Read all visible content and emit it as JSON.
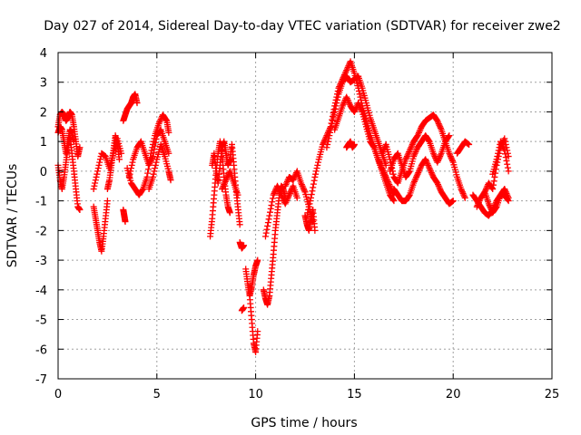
{
  "chart_data": {
    "type": "scatter",
    "title": "Day 027 of 2014, Sidereal Day-to-day VTEC variation (SDTVAR) for receiver zwe2",
    "xlabel": "GPS time / hours",
    "ylabel": "SDTVAR / TECUs",
    "xlim": [
      0,
      25
    ],
    "ylim": [
      -7,
      4
    ],
    "xticks": [
      "0",
      "5",
      "10",
      "15",
      "20",
      "25"
    ],
    "yticks": [
      "-7",
      "-6",
      "-5",
      "-4",
      "-3",
      "-2",
      "-1",
      "0",
      "1",
      "2",
      "3",
      "4"
    ],
    "xtick_values": [
      0,
      5,
      10,
      15,
      20,
      25
    ],
    "ytick_values": [
      -7,
      -6,
      -5,
      -4,
      -3,
      -2,
      -1,
      0,
      1,
      2,
      3,
      4
    ],
    "grid": true,
    "marker": "plus",
    "color": "#ff0000",
    "series": [
      {
        "name": "s1",
        "x": [
          0.0,
          0.1,
          0.2,
          0.3,
          0.4,
          0.5,
          0.6,
          0.7,
          0.8,
          0.9,
          1.0,
          1.1
        ],
        "y": [
          1.5,
          1.9,
          2.0,
          1.9,
          1.7,
          1.8,
          2.0,
          1.9,
          1.5,
          1.0,
          0.5,
          0.8
        ]
      },
      {
        "name": "s2",
        "x": [
          0.0,
          0.1,
          0.2,
          0.3,
          0.4,
          0.5,
          0.6,
          0.7,
          0.8,
          0.9,
          1.0,
          1.1
        ],
        "y": [
          0.2,
          -0.3,
          -0.6,
          -0.2,
          0.3,
          0.8,
          1.2,
          0.6,
          0.0,
          -0.6,
          -1.2,
          -1.3
        ]
      },
      {
        "name": "s3",
        "x": [
          0.0,
          0.1,
          0.2,
          0.3,
          0.4,
          0.5,
          0.6,
          0.7,
          0.8
        ],
        "y": [
          1.3,
          1.5,
          1.4,
          1.0,
          0.6,
          1.0,
          1.4,
          1.3,
          1.0
        ]
      },
      {
        "name": "s4",
        "x": [
          1.8,
          1.9,
          2.0,
          2.1,
          2.2,
          2.3,
          2.4,
          2.5
        ],
        "y": [
          -1.2,
          -1.6,
          -2.0,
          -2.4,
          -2.7,
          -2.2,
          -1.6,
          -1.0
        ]
      },
      {
        "name": "s5",
        "x": [
          1.8,
          2.0,
          2.2,
          2.4,
          2.6,
          2.8,
          3.0,
          3.2
        ],
        "y": [
          -0.6,
          0.0,
          0.6,
          0.5,
          0.1,
          0.6,
          1.1,
          0.6
        ]
      },
      {
        "name": "s6",
        "x": [
          2.5,
          2.6,
          2.7,
          2.8,
          2.9,
          3.0,
          3.1
        ],
        "y": [
          -0.6,
          -0.3,
          0.2,
          0.7,
          1.2,
          0.9,
          0.4
        ]
      },
      {
        "name": "s7",
        "x": [
          3.3,
          3.4,
          3.5,
          3.6,
          3.7,
          3.8,
          3.9,
          4.0
        ],
        "y": [
          1.7,
          1.9,
          2.1,
          2.2,
          2.3,
          2.5,
          2.6,
          2.3
        ]
      },
      {
        "name": "s8",
        "x": [
          3.3,
          3.35,
          3.4
        ],
        "y": [
          -1.3,
          -1.5,
          -1.7
        ]
      },
      {
        "name": "s9",
        "x": [
          3.5,
          3.7,
          3.9,
          4.1,
          4.3,
          4.5,
          4.7,
          4.9,
          5.1,
          5.3,
          5.5,
          5.6
        ],
        "y": [
          0.1,
          -0.4,
          -0.6,
          -0.8,
          -0.6,
          -0.2,
          0.6,
          1.2,
          1.6,
          1.9,
          1.7,
          1.3
        ]
      },
      {
        "name": "s10",
        "x": [
          3.6,
          3.8,
          4.0,
          4.2,
          4.4,
          4.6,
          4.8,
          5.0,
          5.2,
          5.4,
          5.6
        ],
        "y": [
          -0.2,
          0.4,
          0.8,
          1.0,
          0.6,
          0.2,
          0.5,
          1.2,
          1.4,
          1.0,
          0.6
        ]
      },
      {
        "name": "s11",
        "x": [
          4.6,
          4.8,
          5.0,
          5.2,
          5.4,
          5.6,
          5.7
        ],
        "y": [
          -0.6,
          -0.2,
          0.4,
          0.9,
          0.5,
          0.0,
          -0.3
        ]
      },
      {
        "name": "s12",
        "x": [
          7.7,
          7.8,
          7.9,
          8.0,
          8.1,
          8.2,
          8.3,
          8.4,
          8.5,
          8.6,
          8.7
        ],
        "y": [
          -2.2,
          -1.6,
          -0.8,
          0.0,
          0.6,
          1.0,
          0.6,
          -0.2,
          -0.8,
          -1.2,
          -1.4
        ]
      },
      {
        "name": "s13",
        "x": [
          7.8,
          7.9,
          8.0,
          8.1,
          8.2,
          8.3,
          8.4,
          8.5,
          8.6,
          8.7,
          8.8,
          8.9,
          9.0,
          9.1,
          9.2
        ],
        "y": [
          0.2,
          0.6,
          0.0,
          -0.4,
          0.2,
          0.8,
          1.0,
          0.6,
          0.2,
          0.4,
          0.9,
          0.2,
          -0.6,
          -1.2,
          -1.8
        ]
      },
      {
        "name": "s14",
        "x": [
          8.3,
          8.5,
          8.7,
          8.9,
          9.1
        ],
        "y": [
          -0.6,
          -0.3,
          0.0,
          -0.4,
          -0.8
        ]
      },
      {
        "name": "s15",
        "x": [
          9.2,
          9.3,
          9.4
        ],
        "y": [
          -2.4,
          -2.6,
          -2.5
        ]
      },
      {
        "name": "s16",
        "x": [
          9.3,
          9.4
        ],
        "y": [
          -4.7,
          -4.6
        ]
      },
      {
        "name": "s17",
        "x": [
          9.5,
          9.6,
          9.7,
          9.8,
          9.9,
          10.0,
          10.1
        ],
        "y": [
          -3.3,
          -3.8,
          -4.2,
          -3.9,
          -3.5,
          -3.2,
          -3.0
        ]
      },
      {
        "name": "s18",
        "x": [
          9.7,
          9.8,
          9.9,
          10.0,
          10.1
        ],
        "y": [
          -4.2,
          -5.0,
          -5.8,
          -6.1,
          -5.4
        ]
      },
      {
        "name": "s19",
        "x": [
          10.4,
          10.5,
          10.6,
          10.7,
          10.8,
          10.9,
          11.0,
          11.1,
          11.2,
          11.3,
          11.4,
          11.5
        ],
        "y": [
          -4.0,
          -4.3,
          -4.5,
          -4.2,
          -3.5,
          -2.8,
          -2.0,
          -1.4,
          -0.8,
          -0.5,
          -0.6,
          -0.9
        ]
      },
      {
        "name": "s20",
        "x": [
          10.5,
          10.7,
          10.9,
          11.1,
          11.3,
          11.5,
          11.7,
          11.9,
          12.1
        ],
        "y": [
          -2.2,
          -1.5,
          -0.8,
          -0.5,
          -0.8,
          -1.1,
          -0.8,
          -0.5,
          -0.9
        ]
      },
      {
        "name": "s21",
        "x": [
          11.5,
          11.7,
          11.9,
          12.1,
          12.3,
          12.5,
          12.7,
          12.9
        ],
        "y": [
          -0.5,
          -0.2,
          -0.3,
          0.0,
          -0.4,
          -0.7,
          -1.2,
          -1.7
        ]
      },
      {
        "name": "s22",
        "x": [
          12.5,
          12.6,
          12.7,
          12.8,
          12.9,
          13.0
        ],
        "y": [
          -1.5,
          -1.8,
          -2.0,
          -1.6,
          -1.3,
          -2.0
        ]
      },
      {
        "name": "s23",
        "x": [
          12.6,
          12.8,
          13.0,
          13.2,
          13.4,
          13.6,
          13.8,
          14.0,
          14.2,
          14.4,
          14.6,
          14.8,
          15.0,
          15.2,
          15.4,
          15.6,
          15.8,
          16.0,
          16.2,
          16.4,
          16.6,
          16.8,
          17.0
        ],
        "y": [
          -1.5,
          -0.9,
          -0.2,
          0.4,
          0.9,
          1.2,
          1.5,
          2.2,
          2.8,
          3.1,
          3.4,
          3.7,
          3.3,
          2.8,
          2.2,
          1.7,
          1.2,
          0.8,
          0.4,
          0.0,
          -0.4,
          -0.8,
          -1.0
        ]
      },
      {
        "name": "s24",
        "x": [
          13.6,
          13.8,
          14.0,
          14.2,
          14.4,
          14.6,
          14.8,
          15.0,
          15.2,
          15.4,
          15.6,
          15.8,
          16.0,
          16.2,
          16.4,
          16.6
        ],
        "y": [
          0.8,
          1.4,
          2.0,
          2.6,
          3.0,
          3.2,
          3.0,
          3.1,
          3.2,
          2.8,
          2.3,
          1.8,
          1.4,
          1.0,
          0.6,
          0.2
        ]
      },
      {
        "name": "s25",
        "x": [
          14.0,
          14.2,
          14.4,
          14.6,
          14.8,
          15.0,
          15.2,
          15.4,
          15.6,
          15.8,
          16.0,
          16.2,
          16.4,
          16.6,
          16.8,
          17.0
        ],
        "y": [
          1.4,
          1.8,
          2.2,
          2.5,
          2.2,
          2.0,
          2.3,
          2.0,
          1.5,
          1.0,
          0.8,
          0.4,
          0.1,
          -0.2,
          -0.5,
          -0.8
        ]
      },
      {
        "name": "s26",
        "x": [
          14.6,
          14.7,
          14.8,
          14.9,
          15.0
        ],
        "y": [
          0.8,
          0.9,
          1.0,
          0.8,
          0.9
        ]
      },
      {
        "name": "s27",
        "x": [
          16.4,
          16.6,
          16.8,
          17.0,
          17.2,
          17.4,
          17.6,
          17.8,
          18.0,
          18.2,
          18.4,
          18.6,
          18.8,
          19.0,
          19.2,
          19.4,
          19.6,
          19.8,
          20.0,
          20.2,
          20.4,
          20.6
        ],
        "y": [
          0.6,
          0.9,
          0.4,
          -0.2,
          -0.4,
          0.0,
          0.4,
          0.7,
          1.0,
          1.2,
          1.5,
          1.7,
          1.8,
          1.9,
          1.7,
          1.4,
          1.0,
          0.6,
          0.3,
          -0.2,
          -0.6,
          -0.9
        ]
      },
      {
        "name": "s28",
        "x": [
          16.8,
          17.0,
          17.2,
          17.4,
          17.6,
          17.8,
          18.0,
          18.2,
          18.4,
          18.6,
          18.8,
          19.0,
          19.2,
          19.4,
          19.6,
          19.8
        ],
        "y": [
          0.0,
          0.4,
          0.6,
          0.2,
          -0.2,
          0.0,
          0.5,
          0.8,
          1.0,
          1.2,
          1.0,
          0.6,
          0.3,
          0.6,
          1.0,
          1.2
        ]
      },
      {
        "name": "s29",
        "x": [
          17.0,
          17.2,
          17.4,
          17.6,
          17.8,
          18.0,
          18.2,
          18.4,
          18.6,
          18.8,
          19.0,
          19.2,
          19.4,
          19.6,
          19.8,
          20.0
        ],
        "y": [
          -0.6,
          -0.8,
          -1.0,
          -1.0,
          -0.8,
          -0.4,
          -0.1,
          0.2,
          0.4,
          0.1,
          -0.2,
          -0.4,
          -0.7,
          -0.9,
          -1.1,
          -1.0
        ]
      },
      {
        "name": "s30",
        "x": [
          20.2,
          20.4,
          20.6,
          20.8
        ],
        "y": [
          0.6,
          0.8,
          1.0,
          0.9
        ]
      },
      {
        "name": "s31",
        "x": [
          21.0,
          21.2,
          21.4,
          21.6,
          21.8,
          22.0,
          22.2,
          22.4,
          22.6,
          22.8
        ],
        "y": [
          -0.8,
          -1.0,
          -1.2,
          -1.4,
          -1.5,
          -1.3,
          -1.0,
          -0.8,
          -0.8,
          -1.0
        ]
      },
      {
        "name": "s32",
        "x": [
          21.2,
          21.4,
          21.6,
          21.8,
          22.0,
          22.2,
          22.4,
          22.6,
          22.8
        ],
        "y": [
          -1.2,
          -0.9,
          -0.7,
          -1.1,
          -1.4,
          -1.2,
          -0.8,
          -0.6,
          -0.9
        ]
      },
      {
        "name": "s33",
        "x": [
          21.6,
          21.8,
          22.0,
          22.2,
          22.4,
          22.6,
          22.8
        ],
        "y": [
          -0.7,
          -0.4,
          -0.6,
          0.2,
          0.8,
          1.1,
          0.5
        ]
      },
      {
        "name": "s34",
        "x": [
          22.0,
          22.2,
          22.4,
          22.6,
          22.8
        ],
        "y": [
          -0.1,
          0.4,
          1.0,
          0.7,
          0.0
        ]
      }
    ]
  }
}
